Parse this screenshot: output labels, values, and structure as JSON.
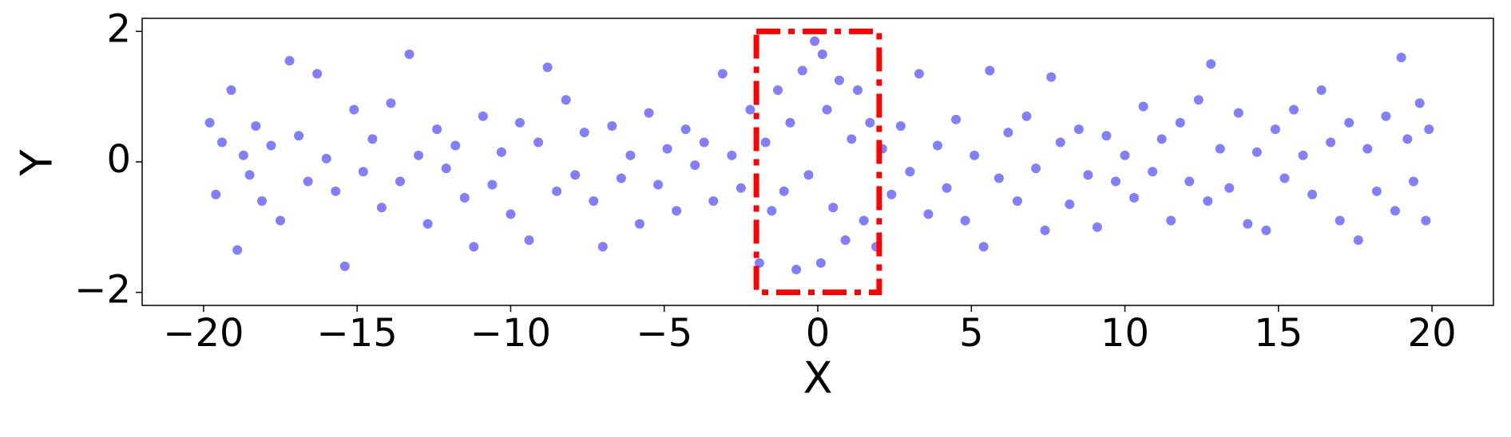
{
  "chart_data": {
    "type": "scatter",
    "x_label": "X",
    "y_label": "Y",
    "xlim": [
      -22,
      22
    ],
    "ylim": [
      -2.2,
      2.2
    ],
    "xticks": [
      {
        "value": -20,
        "label": "−20"
      },
      {
        "value": -15,
        "label": "−15"
      },
      {
        "value": -10,
        "label": "−10"
      },
      {
        "value": -5,
        "label": "−5"
      },
      0,
      5,
      10,
      15,
      20
    ],
    "yticks": [
      {
        "value": -2,
        "label": "−2"
      },
      0,
      2
    ],
    "color": "#0000ff",
    "opacity": 0.5,
    "highlight_box": {
      "xlim": [
        -2,
        2
      ],
      "ylim": [
        -2,
        2
      ],
      "color": "#ff0000"
    },
    "x": [
      -19.8,
      -19.6,
      -19.4,
      -19.1,
      -18.9,
      -18.7,
      -18.5,
      -18.3,
      -18.1,
      -17.8,
      -17.5,
      -17.2,
      -16.9,
      -16.6,
      -16.3,
      -16.0,
      -15.7,
      -15.4,
      -15.1,
      -14.8,
      -14.5,
      -14.2,
      -13.9,
      -13.6,
      -13.3,
      -13.0,
      -12.7,
      -12.4,
      -12.1,
      -11.8,
      -11.5,
      -11.2,
      -10.9,
      -10.6,
      -10.3,
      -10.0,
      -9.7,
      -9.4,
      -9.1,
      -8.8,
      -8.5,
      -8.2,
      -7.9,
      -7.6,
      -7.3,
      -7.0,
      -6.7,
      -6.4,
      -6.1,
      -5.8,
      -5.5,
      -5.2,
      -4.9,
      -4.6,
      -4.3,
      -4.0,
      -3.7,
      -3.4,
      -3.1,
      -2.8,
      -2.5,
      -2.2,
      -1.9,
      -1.7,
      -1.5,
      -1.3,
      -1.1,
      -0.9,
      -0.7,
      -0.5,
      -0.3,
      -0.1,
      0.1,
      0.15,
      0.3,
      0.5,
      0.7,
      0.9,
      1.1,
      1.3,
      1.5,
      1.7,
      1.9,
      2.1,
      2.4,
      2.7,
      3.0,
      3.3,
      3.6,
      3.9,
      4.2,
      4.5,
      4.8,
      5.1,
      5.4,
      5.6,
      5.9,
      6.2,
      6.5,
      6.8,
      7.1,
      7.4,
      7.6,
      7.9,
      8.2,
      8.5,
      8.8,
      9.1,
      9.4,
      9.7,
      10.0,
      10.3,
      10.6,
      10.9,
      11.2,
      11.5,
      11.8,
      12.1,
      12.4,
      12.7,
      12.8,
      13.1,
      13.4,
      13.7,
      14.0,
      14.3,
      14.6,
      14.9,
      15.2,
      15.5,
      15.8,
      16.1,
      16.4,
      16.7,
      17.0,
      17.3,
      17.6,
      17.9,
      18.2,
      18.5,
      18.8,
      19.0,
      19.2,
      19.4,
      19.6,
      19.8,
      19.9
    ],
    "y": [
      0.6,
      -0.5,
      0.3,
      1.1,
      -1.35,
      0.1,
      -0.2,
      0.55,
      -0.6,
      0.25,
      -0.9,
      1.55,
      0.4,
      -0.3,
      1.35,
      0.05,
      -0.45,
      -1.6,
      0.8,
      -0.15,
      0.35,
      -0.7,
      0.9,
      -0.3,
      1.65,
      0.1,
      -0.95,
      0.5,
      -0.1,
      0.25,
      -0.55,
      -1.3,
      0.7,
      -0.35,
      0.15,
      -0.8,
      0.6,
      -1.2,
      0.3,
      1.45,
      -0.45,
      0.95,
      -0.2,
      0.45,
      -0.6,
      -1.3,
      0.55,
      -0.25,
      0.1,
      -0.95,
      0.75,
      -0.35,
      0.2,
      -0.75,
      0.5,
      -0.05,
      0.3,
      -0.6,
      1.35,
      0.1,
      -0.4,
      0.8,
      -1.55,
      0.3,
      -0.75,
      1.1,
      -0.45,
      0.6,
      -1.65,
      1.4,
      -0.2,
      1.85,
      -1.55,
      1.65,
      0.8,
      -0.7,
      1.25,
      -1.2,
      0.35,
      1.1,
      -0.9,
      0.6,
      -1.3,
      0.2,
      -0.5,
      0.55,
      -0.15,
      1.35,
      -0.8,
      0.25,
      -0.4,
      0.65,
      -0.9,
      0.1,
      -1.3,
      1.4,
      -0.25,
      0.45,
      -0.6,
      0.7,
      -0.1,
      -1.05,
      1.3,
      0.3,
      -0.65,
      0.5,
      -0.2,
      -1.0,
      0.4,
      -0.3,
      0.1,
      -0.55,
      0.85,
      -0.15,
      0.35,
      -0.9,
      0.6,
      -0.3,
      0.95,
      -0.6,
      1.5,
      0.2,
      -0.4,
      0.75,
      -0.95,
      0.15,
      -1.05,
      0.5,
      -0.25,
      0.8,
      0.1,
      -0.5,
      1.1,
      0.3,
      -0.9,
      0.6,
      -1.2,
      0.2,
      -0.45,
      0.7,
      -0.75,
      1.6,
      0.35,
      -0.3,
      0.9,
      -0.9,
      0.5
    ]
  }
}
